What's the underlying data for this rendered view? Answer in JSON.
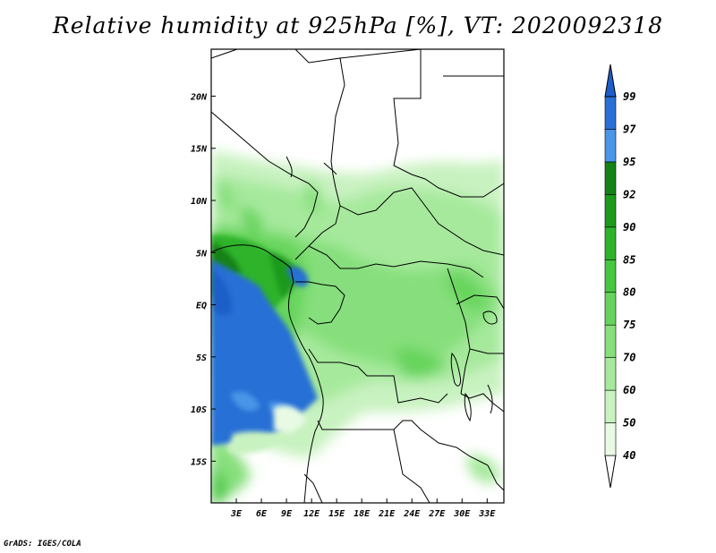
{
  "title": "Relative humidity at 925hPa [%], VT: 2020092318",
  "credit": "GrADS: IGES/COLA",
  "map": {
    "lon_range": [
      0,
      35
    ],
    "lat_range": [
      -19,
      24.5
    ],
    "lon_ticks": [
      {
        "value": 3,
        "label": "3E"
      },
      {
        "value": 6,
        "label": "6E"
      },
      {
        "value": 9,
        "label": "9E"
      },
      {
        "value": 12,
        "label": "12E"
      },
      {
        "value": 15,
        "label": "15E"
      },
      {
        "value": 18,
        "label": "18E"
      },
      {
        "value": 21,
        "label": "21E"
      },
      {
        "value": 24,
        "label": "24E"
      },
      {
        "value": 27,
        "label": "27E"
      },
      {
        "value": 30,
        "label": "30E"
      },
      {
        "value": 33,
        "label": "33E"
      }
    ],
    "lat_ticks": [
      {
        "value": 20,
        "label": "20N"
      },
      {
        "value": 15,
        "label": "15N"
      },
      {
        "value": 10,
        "label": "10N"
      },
      {
        "value": 5,
        "label": "5N"
      },
      {
        "value": 0,
        "label": "EQ"
      },
      {
        "value": -5,
        "label": "5S"
      },
      {
        "value": -10,
        "label": "10S"
      },
      {
        "value": -15,
        "label": "15S"
      }
    ]
  },
  "colorbar": {
    "levels": [
      "40",
      "50",
      "60",
      "70",
      "75",
      "80",
      "85",
      "90",
      "92",
      "95",
      "97",
      "99"
    ],
    "colors": [
      "#ffffff",
      "#e8fae4",
      "#c8f2c0",
      "#a6e99c",
      "#86df7b",
      "#66d45c",
      "#47c63f",
      "#2db32a",
      "#1c9a1b",
      "#148214",
      "#4a96e8",
      "#2870d6",
      "#1e5ec8"
    ]
  }
}
